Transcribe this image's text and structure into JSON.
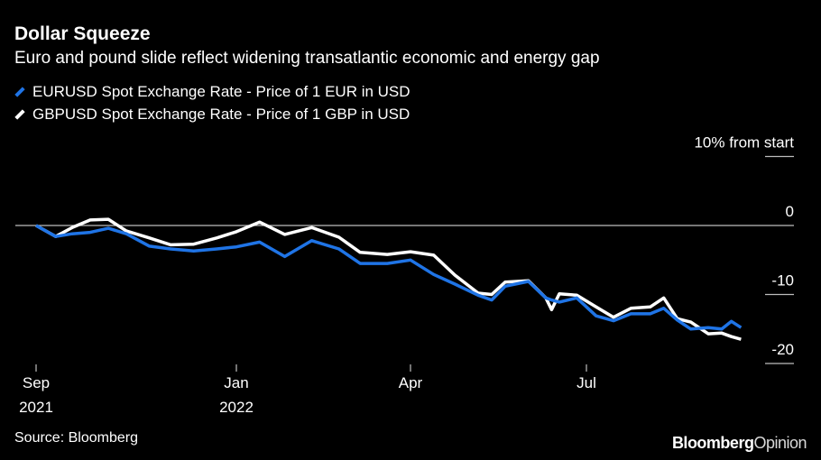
{
  "title": "Dollar Squeeze",
  "subtitle": "Euro and pound slide reflect widening transatlantic economic and energy gap",
  "source": "Source: Bloomberg",
  "logo": {
    "part1": "Bloomberg",
    "part2": "Opinion"
  },
  "chart_data": {
    "type": "line",
    "title": "Dollar Squeeze",
    "ylabel": "10% from start",
    "ylim": [
      -20,
      10
    ],
    "yticks": [
      {
        "value": 10,
        "label": "10% from start"
      },
      {
        "value": 0,
        "label": "0"
      },
      {
        "value": -10,
        "label": "-10"
      },
      {
        "value": -20,
        "label": "-20"
      }
    ],
    "xticks": [
      {
        "date": "2021-09-01",
        "label": [
          "Sep",
          "2021"
        ]
      },
      {
        "date": "2022-01-01",
        "label": [
          "Jan",
          "2022"
        ]
      },
      {
        "date": "2022-04-01",
        "label": [
          "Apr",
          ""
        ]
      },
      {
        "date": "2022-07-01",
        "label": [
          "Jul",
          ""
        ]
      }
    ],
    "legend": "top-left",
    "grid": false,
    "x": [
      "2021-09-01",
      "2021-09-13",
      "2021-09-23",
      "2021-10-04",
      "2021-10-15",
      "2021-10-26",
      "2021-11-09",
      "2021-11-22",
      "2021-12-06",
      "2021-12-20",
      "2022-01-01",
      "2022-01-13",
      "2022-01-26",
      "2022-02-09",
      "2022-02-23",
      "2022-03-06",
      "2022-03-20",
      "2022-04-01",
      "2022-04-13",
      "2022-04-24",
      "2022-05-06",
      "2022-05-13",
      "2022-05-20",
      "2022-06-01",
      "2022-06-10",
      "2022-06-13",
      "2022-06-17",
      "2022-06-26",
      "2022-07-06",
      "2022-07-15",
      "2022-07-24",
      "2022-08-03",
      "2022-08-10",
      "2022-08-17",
      "2022-08-24",
      "2022-09-02",
      "2022-09-09",
      "2022-09-14",
      "2022-09-19"
    ],
    "series": [
      {
        "name": "EURUSD Spot Exchange Rate - Price of 1 EUR in USD",
        "color": "#1f74e6",
        "values": [
          0,
          -1.6,
          -1.2,
          -1.0,
          -0.4,
          -1.2,
          -3.0,
          -3.4,
          -3.7,
          -3.4,
          -3.1,
          -2.4,
          -4.5,
          -2.2,
          -3.4,
          -5.5,
          -5.5,
          -5.0,
          -7.1,
          -8.5,
          -10.1,
          -10.8,
          -8.8,
          -8.1,
          -10.5,
          -10.8,
          -11.1,
          -10.5,
          -13.1,
          -13.8,
          -12.8,
          -12.8,
          -12.0,
          -13.7,
          -15.0,
          -14.8,
          -15.0,
          -13.9,
          -14.8
        ]
      },
      {
        "name": "GBPUSD Spot Exchange Rate - Price of 1 GBP in USD",
        "color": "#ffffff",
        "values": [
          0,
          -1.6,
          -0.3,
          0.8,
          0.9,
          -0.8,
          -1.8,
          -2.8,
          -2.7,
          -1.8,
          -0.9,
          0.5,
          -1.3,
          -0.3,
          -1.7,
          -3.9,
          -4.2,
          -3.8,
          -4.3,
          -7.2,
          -9.8,
          -10.0,
          -8.2,
          -8.0,
          -10.5,
          -12.2,
          -9.9,
          -10.1,
          -11.8,
          -13.3,
          -12.0,
          -11.8,
          -10.5,
          -13.5,
          -14.0,
          -15.7,
          -15.6,
          -16.1,
          -16.5
        ]
      }
    ]
  }
}
